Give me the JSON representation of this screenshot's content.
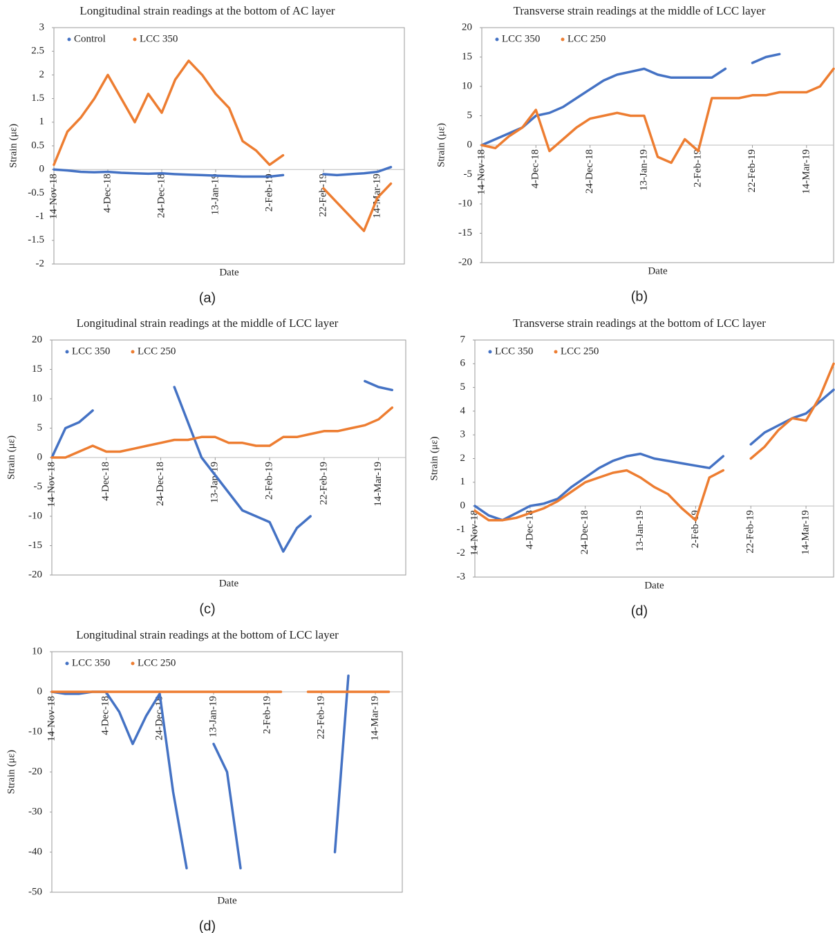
{
  "chart_data": [
    {
      "type": "line",
      "title": "Longitudinal strain readings at the bottom of AC layer",
      "x_label": "Date",
      "y_label": "Strain (με)",
      "caption": "(a)",
      "x": [
        "14-Nov-18",
        "19-Nov-18",
        "24-Nov-18",
        "29-Nov-18",
        "4-Dec-18",
        "9-Dec-18",
        "14-Dec-18",
        "19-Dec-18",
        "24-Dec-18",
        "29-Dec-18",
        "3-Jan-19",
        "8-Jan-19",
        "13-Jan-19",
        "18-Jan-19",
        "23-Jan-19",
        "28-Jan-19",
        "2-Feb-19",
        "7-Feb-19",
        "12-Feb-19",
        "17-Feb-19",
        "22-Feb-19",
        "27-Feb-19",
        "4-Mar-19",
        "9-Mar-19",
        "14-Mar-19",
        "19-Mar-19",
        "24-Mar-19"
      ],
      "series": [
        {
          "name": "Control",
          "color": "#4472c4",
          "values": [
            0,
            -0.02,
            -0.05,
            -0.06,
            -0.05,
            -0.07,
            -0.08,
            -0.09,
            -0.08,
            -0.1,
            -0.11,
            -0.12,
            -0.13,
            -0.14,
            -0.15,
            -0.15,
            -0.15,
            -0.12,
            null,
            null,
            -0.1,
            -0.12,
            -0.1,
            -0.08,
            -0.05,
            0.05,
            null
          ]
        },
        {
          "name": "LCC 350",
          "color": "#ed7d31",
          "values": [
            0.1,
            0.8,
            1.1,
            1.5,
            2.0,
            1.5,
            1.0,
            1.6,
            1.2,
            1.9,
            2.3,
            2.0,
            1.6,
            1.3,
            0.6,
            0.4,
            0.1,
            0.3,
            null,
            null,
            -0.4,
            -0.7,
            -1.0,
            -1.3,
            -0.6,
            -0.3,
            null
          ]
        }
      ],
      "xlim": [
        "14-Nov-18",
        "24-Mar-19"
      ],
      "xticks": [
        "14-Nov-18",
        "4-Dec-18",
        "24-Dec-18",
        "13-Jan-19",
        "2-Feb-19",
        "22-Feb-19",
        "14-Mar-19"
      ],
      "ylim": [
        -2,
        3
      ],
      "yticks": [
        -2,
        -1.5,
        -1,
        -0.5,
        0,
        0.5,
        1,
        1.5,
        2,
        2.5,
        3
      ],
      "legend": "top-left"
    },
    {
      "type": "line",
      "title": "Transverse strain readings at the middle of LCC layer",
      "x_label": "Date",
      "y_label": "Strain (με)",
      "caption": "(b)",
      "x": [
        "14-Nov-18",
        "19-Nov-18",
        "24-Nov-18",
        "29-Nov-18",
        "4-Dec-18",
        "9-Dec-18",
        "14-Dec-18",
        "19-Dec-18",
        "24-Dec-18",
        "29-Dec-18",
        "3-Jan-19",
        "8-Jan-19",
        "13-Jan-19",
        "18-Jan-19",
        "23-Jan-19",
        "28-Jan-19",
        "2-Feb-19",
        "7-Feb-19",
        "12-Feb-19",
        "17-Feb-19",
        "22-Feb-19",
        "27-Feb-19",
        "4-Mar-19",
        "9-Mar-19",
        "14-Mar-19",
        "19-Mar-19",
        "24-Mar-19"
      ],
      "series": [
        {
          "name": "LCC 350",
          "color": "#4472c4",
          "values": [
            0,
            1,
            2,
            3,
            5,
            5.5,
            6.5,
            8,
            9.5,
            11,
            12,
            12.5,
            13,
            12,
            11.5,
            11.5,
            11.5,
            11.5,
            13,
            null,
            14,
            15,
            15.5,
            null,
            null,
            null,
            null
          ]
        },
        {
          "name": "LCC 250",
          "color": "#ed7d31",
          "values": [
            0,
            -0.5,
            1.5,
            3,
            6,
            -1,
            1,
            3,
            4.5,
            5,
            5.5,
            5,
            5,
            -2,
            -3,
            1,
            -1,
            8,
            8,
            8,
            8.5,
            8.5,
            9,
            9,
            9,
            10,
            13
          ]
        }
      ],
      "xlim": [
        "14-Nov-18",
        "24-Mar-19"
      ],
      "xticks": [
        "14-Nov-18",
        "4-Dec-18",
        "24-Dec-18",
        "13-Jan-19",
        "2-Feb-19",
        "22-Feb-19",
        "14-Mar-19"
      ],
      "ylim": [
        -20,
        20
      ],
      "yticks": [
        -20,
        -15,
        -10,
        -5,
        0,
        5,
        10,
        15,
        20
      ],
      "legend": "top-left"
    },
    {
      "type": "line",
      "title": "Longitudinal strain readings at the middle of LCC layer",
      "x_label": "Date",
      "y_label": "Strain (με)",
      "caption": "(c)",
      "x": [
        "14-Nov-18",
        "19-Nov-18",
        "24-Nov-18",
        "29-Nov-18",
        "4-Dec-18",
        "9-Dec-18",
        "14-Dec-18",
        "19-Dec-18",
        "24-Dec-18",
        "29-Dec-18",
        "3-Jan-19",
        "8-Jan-19",
        "13-Jan-19",
        "18-Jan-19",
        "23-Jan-19",
        "28-Jan-19",
        "2-Feb-19",
        "7-Feb-19",
        "12-Feb-19",
        "17-Feb-19",
        "22-Feb-19",
        "27-Feb-19",
        "4-Mar-19",
        "9-Mar-19",
        "14-Mar-19",
        "19-Mar-19",
        "24-Mar-19"
      ],
      "series": [
        {
          "name": "LCC 350",
          "color": "#4472c4",
          "values": [
            0,
            5,
            6,
            8,
            null,
            null,
            null,
            null,
            null,
            12,
            6,
            0,
            -3,
            -6,
            -9,
            -10,
            -11,
            -16,
            -12,
            -10,
            null,
            null,
            null,
            13,
            12,
            11.5,
            null
          ]
        },
        {
          "name": "LCC 250",
          "color": "#ed7d31",
          "values": [
            0,
            0,
            1,
            2,
            1,
            1,
            1.5,
            2,
            2.5,
            3,
            3,
            3.5,
            3.5,
            2.5,
            2.5,
            2,
            2,
            3.5,
            3.5,
            4,
            4.5,
            4.5,
            5,
            5.5,
            6.5,
            8.5,
            null
          ]
        }
      ],
      "xlim": [
        "14-Nov-18",
        "24-Mar-19"
      ],
      "xticks": [
        "14-Nov-18",
        "4-Dec-18",
        "24-Dec-18",
        "13-Jan-19",
        "2-Feb-19",
        "22-Feb-19",
        "14-Mar-19"
      ],
      "ylim": [
        -20,
        20
      ],
      "yticks": [
        -20,
        -15,
        -10,
        -5,
        0,
        5,
        10,
        15,
        20
      ],
      "legend": "top-left"
    },
    {
      "type": "line",
      "title": "Transverse strain readings at the bottom of LCC layer",
      "x_label": "Date",
      "y_label": "Strain (με)",
      "caption": "(d)",
      "x": [
        "14-Nov-18",
        "19-Nov-18",
        "24-Nov-18",
        "29-Nov-18",
        "4-Dec-18",
        "9-Dec-18",
        "14-Dec-18",
        "19-Dec-18",
        "24-Dec-18",
        "29-Dec-18",
        "3-Jan-19",
        "8-Jan-19",
        "13-Jan-19",
        "18-Jan-19",
        "23-Jan-19",
        "28-Jan-19",
        "2-Feb-19",
        "7-Feb-19",
        "12-Feb-19",
        "17-Feb-19",
        "22-Feb-19",
        "27-Feb-19",
        "4-Mar-19",
        "9-Mar-19",
        "14-Mar-19",
        "19-Mar-19",
        "24-Mar-19"
      ],
      "series": [
        {
          "name": "LCC 350",
          "color": "#4472c4",
          "values": [
            0,
            -0.4,
            -0.6,
            -0.3,
            0,
            0.1,
            0.3,
            0.8,
            1.2,
            1.6,
            1.9,
            2.1,
            2.2,
            2.0,
            1.9,
            1.8,
            1.7,
            1.6,
            2.1,
            null,
            2.6,
            3.1,
            3.4,
            3.7,
            3.9,
            4.4,
            4.9
          ]
        },
        {
          "name": "LCC 250",
          "color": "#ed7d31",
          "values": [
            -0.2,
            -0.6,
            -0.6,
            -0.5,
            -0.3,
            -0.1,
            0.2,
            0.6,
            1.0,
            1.2,
            1.4,
            1.5,
            1.2,
            0.8,
            0.5,
            -0.1,
            -0.6,
            1.2,
            1.5,
            null,
            2.0,
            2.5,
            3.2,
            3.7,
            3.6,
            4.6,
            6.0
          ]
        }
      ],
      "xlim": [
        "14-Nov-18",
        "24-Mar-19"
      ],
      "xticks": [
        "14-Nov-18",
        "4-Dec-18",
        "24-Dec-18",
        "13-Jan-19",
        "2-Feb-19",
        "22-Feb-19",
        "14-Mar-19"
      ],
      "ylim": [
        -3,
        7
      ],
      "yticks": [
        -3,
        -2,
        -1,
        0,
        1,
        2,
        3,
        4,
        5,
        6,
        7
      ],
      "legend": "top-left"
    },
    {
      "type": "line",
      "title": "Longitudinal strain readings at the bottom of LCC layer",
      "x_label": "Date",
      "y_label": "Strain (με)",
      "caption": "(d)",
      "x": [
        "14-Nov-18",
        "19-Nov-18",
        "24-Nov-18",
        "29-Nov-18",
        "4-Dec-18",
        "9-Dec-18",
        "14-Dec-18",
        "19-Dec-18",
        "24-Dec-18",
        "29-Dec-18",
        "3-Jan-19",
        "8-Jan-19",
        "13-Jan-19",
        "18-Jan-19",
        "23-Jan-19",
        "28-Jan-19",
        "2-Feb-19",
        "7-Feb-19",
        "12-Feb-19",
        "17-Feb-19",
        "22-Feb-19",
        "27-Feb-19",
        "4-Mar-19",
        "9-Mar-19",
        "14-Mar-19",
        "19-Mar-19",
        "24-Mar-19"
      ],
      "series": [
        {
          "name": "LCC 350",
          "color": "#4472c4",
          "values": [
            0,
            -0.5,
            -0.5,
            0,
            0,
            -5,
            -13,
            -6,
            -0.5,
            -25,
            -44,
            null,
            -13,
            -20,
            -44,
            null,
            null,
            null,
            null,
            null,
            null,
            -40,
            4,
            null,
            null,
            null,
            null
          ]
        },
        {
          "name": "LCC 250",
          "color": "#ed7d31",
          "values": [
            0,
            0,
            0,
            0,
            0,
            0,
            0,
            0,
            0,
            0,
            0,
            0,
            0,
            0,
            0,
            0,
            0,
            0,
            null,
            0,
            0,
            0,
            0,
            0,
            0,
            0,
            null
          ]
        }
      ],
      "xlim": [
        "14-Nov-18",
        "24-Mar-19"
      ],
      "xticks": [
        "14-Nov-18",
        "4-Dec-18",
        "24-Dec-18",
        "13-Jan-19",
        "2-Feb-19",
        "22-Feb-19",
        "14-Mar-19"
      ],
      "ylim": [
        -50,
        10
      ],
      "yticks": [
        -50,
        -40,
        -30,
        -20,
        -10,
        0,
        10
      ],
      "legend": "top-left"
    }
  ]
}
